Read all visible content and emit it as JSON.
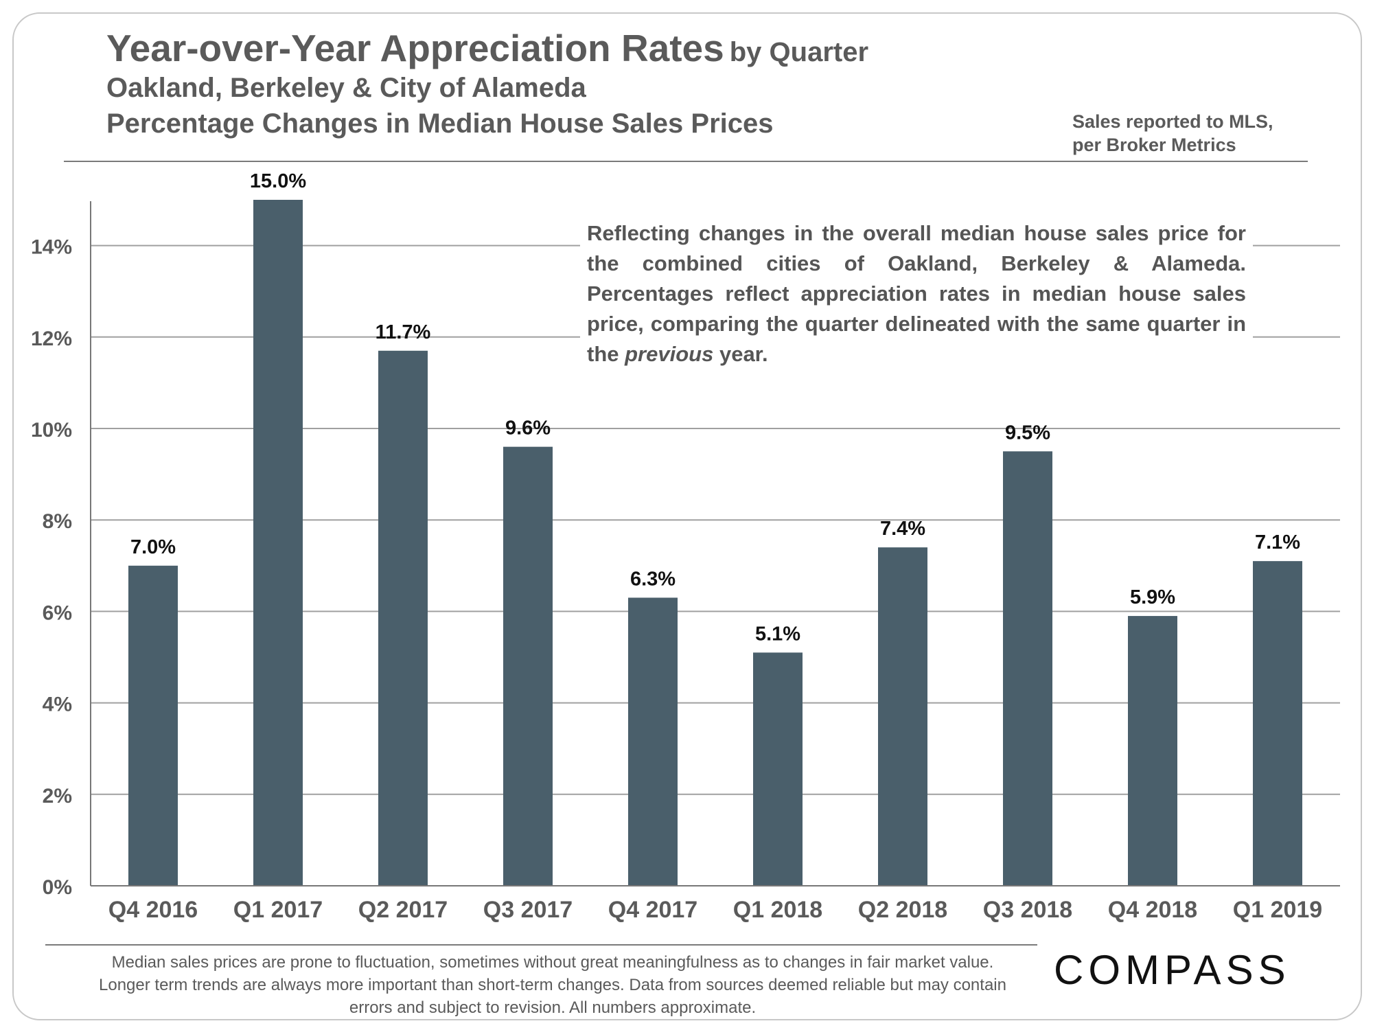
{
  "header": {
    "title_main": "Year-over-Year Appreciation Rates",
    "title_suffix": "by Quarter",
    "subtitle_1": "Oakland, Berkeley & City of Alameda",
    "subtitle_2": "Percentage Changes in Median House Sales Prices",
    "source_line_1": "Sales reported to MLS,",
    "source_line_2": "per Broker Metrics"
  },
  "annotation": {
    "text_before": "Reflecting changes in the overall median house sales price for the combined cities of Oakland, Berkeley & Alameda. Percentages reflect appreciation rates in median house sales price, comparing the quarter delineated with the same quarter in the ",
    "text_emphasis": "previous",
    "text_after": " year."
  },
  "footnote": "Median sales prices are prone to fluctuation, sometimes without great meaningfulness as to changes in fair market value. Longer term trends are always more important than short-term changes. Data from sources deemed reliable but may contain errors and subject to revision. All numbers approximate.",
  "logo_text": "COMPASS",
  "colors": {
    "bar": "#4a5f6b",
    "grid": "#a0a0a0",
    "text_gray": "#5a5a5a"
  },
  "chart_data": {
    "type": "bar",
    "categories": [
      "Q4 2016",
      "Q1 2017",
      "Q2 2017",
      "Q3 2017",
      "Q4 2017",
      "Q1 2018",
      "Q2 2018",
      "Q3 2018",
      "Q4 2018",
      "Q1 2019"
    ],
    "values": [
      7.0,
      15.0,
      11.7,
      9.6,
      6.3,
      5.1,
      7.4,
      9.5,
      5.9,
      7.1
    ],
    "data_labels": [
      "7.0%",
      "15.0%",
      "11.7%",
      "9.6%",
      "6.3%",
      "5.1%",
      "7.4%",
      "9.5%",
      "5.9%",
      "7.1%"
    ],
    "yticks": [
      0,
      2,
      4,
      6,
      8,
      10,
      12,
      14
    ],
    "ytick_labels": [
      "0%",
      "2%",
      "4%",
      "6%",
      "8%",
      "10%",
      "12%",
      "14%"
    ],
    "ylim": [
      0,
      15
    ],
    "grid": true,
    "legend": "none"
  }
}
